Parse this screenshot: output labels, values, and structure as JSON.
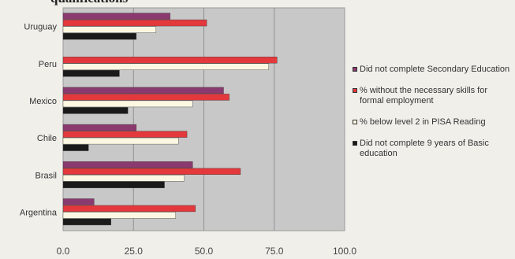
{
  "page_title": "qualifications",
  "chart_data": {
    "type": "bar",
    "orientation": "horizontal",
    "title": "qualifications",
    "categories": [
      "Uruguay",
      "Peru",
      "Mexico",
      "Chile",
      "Brasil",
      "Argentina"
    ],
    "series": [
      {
        "name": "Did not complete Secondary Education",
        "color": "#8a3a6e",
        "values": [
          38,
          0,
          57,
          26,
          46,
          11
        ]
      },
      {
        "name": "% without the necessary skills for formal employment",
        "color": "#e3383c",
        "values": [
          51,
          76,
          59,
          44,
          63,
          47
        ]
      },
      {
        "name": "% below level 2 in PISA Reading",
        "color": "#fbf7e2",
        "values": [
          33,
          73,
          46,
          41,
          43,
          40
        ]
      },
      {
        "name": "Did not complete 9 years of Basic education",
        "color": "#1a1a1a",
        "values": [
          26,
          20,
          23,
          9,
          36,
          17
        ]
      }
    ],
    "xlim": [
      0,
      100
    ],
    "xticks": [
      "0.0",
      "25.0",
      "50.0",
      "75.0",
      "100.0"
    ],
    "grid": true,
    "legend_position": "right"
  }
}
